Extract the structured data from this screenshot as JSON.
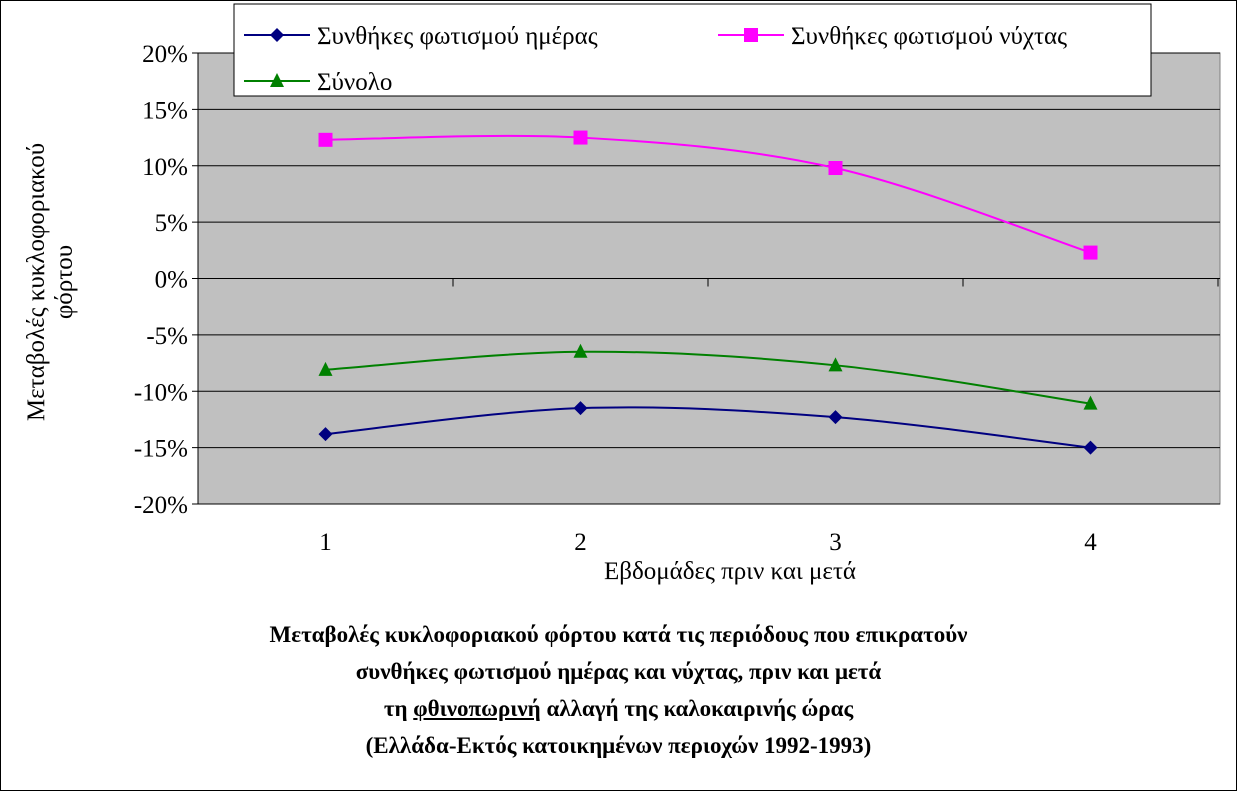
{
  "chart_data": {
    "type": "line",
    "x": [
      1,
      2,
      3,
      4
    ],
    "categories": [
      "1",
      "2",
      "3",
      "4"
    ],
    "xlabel": "Εβδομάδες πριν και μετά",
    "ylabel_line1": "Μεταβολές κυκλοφοριακού",
    "ylabel_line2": "φόρτου",
    "ylim": [
      -0.2,
      0.2
    ],
    "yticks": [
      {
        "value": 0.2,
        "label": "20%"
      },
      {
        "value": 0.15,
        "label": "15%"
      },
      {
        "value": 0.1,
        "label": "10%"
      },
      {
        "value": 0.05,
        "label": "5%"
      },
      {
        "value": 0.0,
        "label": "0%"
      },
      {
        "value": -0.05,
        "label": "-5%"
      },
      {
        "value": -0.1,
        "label": "-10%"
      },
      {
        "value": -0.15,
        "label": "-15%"
      },
      {
        "value": -0.2,
        "label": "-20%"
      }
    ],
    "grid": "horizontal",
    "plot_background": "#c0c0c0",
    "smoothed": true,
    "legend_position": "top",
    "series": [
      {
        "name": "Συνθήκες φωτισμού ημέρας",
        "color": "#000080",
        "marker": "diamond",
        "values": [
          -0.138,
          -0.115,
          -0.123,
          -0.15
        ]
      },
      {
        "name": "Συνθήκες φωτισμού νύχτας",
        "color": "#ff00ff",
        "marker": "square",
        "values": [
          0.123,
          0.125,
          0.098,
          0.023
        ]
      },
      {
        "name": "Σύνολο",
        "color": "#008000",
        "marker": "triangle",
        "values": [
          -0.081,
          -0.065,
          -0.077,
          -0.111
        ]
      }
    ]
  },
  "caption": {
    "line1": "Μεταβολές κυκλοφοριακού φόρτου κατά τις περιόδους που επικρατούν",
    "line2": "συνθήκες φωτισμού ημέρας και νύχτας, πριν και μετά",
    "line3_before": "τη ",
    "line3_underlined": "φθινοπωρινή",
    "line3_after": " αλλαγή της καλοκαιρινής ώρας",
    "line4": "(Ελλάδα-Εκτός κατοικημένων περιοχών 1992-1993)"
  }
}
